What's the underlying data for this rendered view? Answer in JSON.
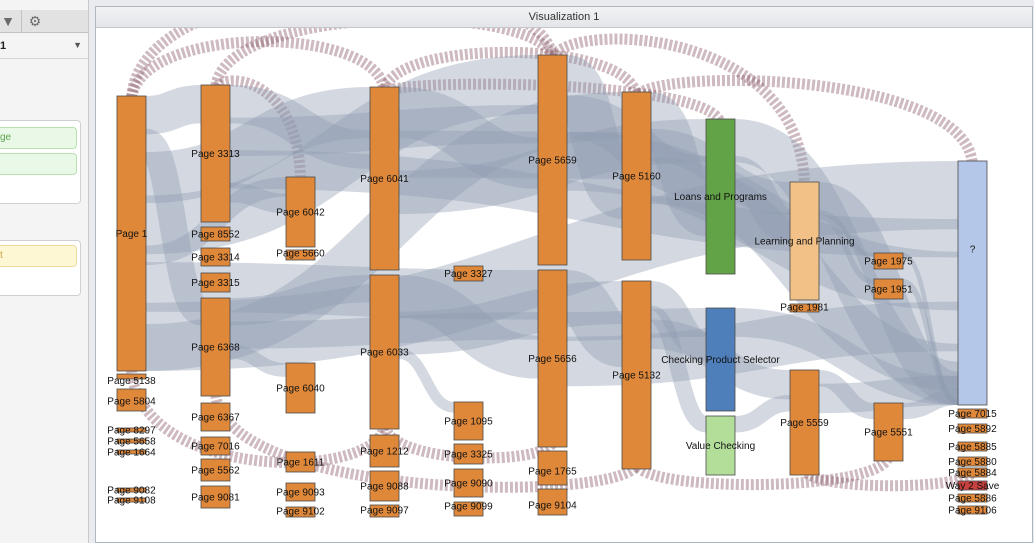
{
  "left_panel": {
    "selected_value": "1",
    "chip_1": "ge",
    "chip_2": "",
    "chip_3": "t"
  },
  "visualization": {
    "title": "Visualization 1"
  },
  "chart_data": {
    "type": "sankey",
    "nodes": [
      {
        "id": "page-1",
        "label": "Page 1",
        "color": "#e0883a"
      },
      {
        "id": "page-5138",
        "label": "Page 5138",
        "color": "#e0883a"
      },
      {
        "id": "page-5804",
        "label": "Page 5804",
        "color": "#e0883a"
      },
      {
        "id": "page-8297",
        "label": "Page 8297",
        "color": "#e0883a"
      },
      {
        "id": "page-5658",
        "label": "Page 5658",
        "color": "#e0883a"
      },
      {
        "id": "page-1664",
        "label": "Page 1664",
        "color": "#e0883a"
      },
      {
        "id": "page-9082",
        "label": "Page 9082",
        "color": "#e0883a"
      },
      {
        "id": "page-9108",
        "label": "Page 9108",
        "color": "#e0883a"
      },
      {
        "id": "page-3313",
        "label": "Page 3313",
        "color": "#e0883a"
      },
      {
        "id": "page-8552",
        "label": "Page 8552",
        "color": "#e0883a"
      },
      {
        "id": "page-3314",
        "label": "Page 3314",
        "color": "#e0883a"
      },
      {
        "id": "page-3315",
        "label": "Page 3315",
        "color": "#e0883a"
      },
      {
        "id": "page-6368",
        "label": "Page 6368",
        "color": "#e0883a"
      },
      {
        "id": "page-6367",
        "label": "Page 6367",
        "color": "#e0883a"
      },
      {
        "id": "page-7016",
        "label": "Page 7016",
        "color": "#e0883a"
      },
      {
        "id": "page-5562",
        "label": "Page 5562",
        "color": "#e0883a"
      },
      {
        "id": "page-9081",
        "label": "Page 9081",
        "color": "#e0883a"
      },
      {
        "id": "page-6042",
        "label": "Page 6042",
        "color": "#e0883a"
      },
      {
        "id": "page-5660",
        "label": "Page 5660",
        "color": "#e0883a"
      },
      {
        "id": "page-6040",
        "label": "Page 6040",
        "color": "#e0883a"
      },
      {
        "id": "page-1611",
        "label": "Page 1611",
        "color": "#e0883a"
      },
      {
        "id": "page-9093",
        "label": "Page 9093",
        "color": "#e0883a"
      },
      {
        "id": "page-9102",
        "label": "Page 9102",
        "color": "#e0883a"
      },
      {
        "id": "page-6041",
        "label": "Page 6041",
        "color": "#e0883a"
      },
      {
        "id": "page-6033",
        "label": "Page 6033",
        "color": "#e0883a"
      },
      {
        "id": "page-1212",
        "label": "Page 1212",
        "color": "#e0883a"
      },
      {
        "id": "page-9088",
        "label": "Page 9088",
        "color": "#e0883a"
      },
      {
        "id": "page-9097",
        "label": "Page 9097",
        "color": "#e0883a"
      },
      {
        "id": "page-3327",
        "label": "Page 3327",
        "color": "#e0883a"
      },
      {
        "id": "page-1095",
        "label": "Page 1095",
        "color": "#e0883a"
      },
      {
        "id": "page-3325",
        "label": "Page 3325",
        "color": "#e0883a"
      },
      {
        "id": "page-9090",
        "label": "Page 9090",
        "color": "#e0883a"
      },
      {
        "id": "page-9099",
        "label": "Page 9099",
        "color": "#e0883a"
      },
      {
        "id": "page-5659",
        "label": "Page 5659",
        "color": "#e0883a"
      },
      {
        "id": "page-5656",
        "label": "Page 5656",
        "color": "#e0883a"
      },
      {
        "id": "page-1765",
        "label": "Page 1765",
        "color": "#e0883a"
      },
      {
        "id": "page-9104",
        "label": "Page 9104",
        "color": "#e0883a"
      },
      {
        "id": "page-5160",
        "label": "Page 5160",
        "color": "#e0883a"
      },
      {
        "id": "page-5132",
        "label": "Page 5132",
        "color": "#e0883a"
      },
      {
        "id": "loans-and-programs",
        "label": "Loans and Programs",
        "color": "#62a347"
      },
      {
        "id": "checking-product-selector",
        "label": "Checking Product Selector",
        "color": "#4f7fba"
      },
      {
        "id": "value-checking",
        "label": "Value Checking",
        "color": "#b2de9a"
      },
      {
        "id": "learning-and-planning",
        "label": "Learning and Planning",
        "color": "#f2c188"
      },
      {
        "id": "page-1981",
        "label": "Page 1981",
        "color": "#e0883a"
      },
      {
        "id": "page-5559",
        "label": "Page 5559",
        "color": "#e0883a"
      },
      {
        "id": "page-1975",
        "label": "Page 1975",
        "color": "#e0883a"
      },
      {
        "id": "page-1951",
        "label": "Page 1951",
        "color": "#e0883a"
      },
      {
        "id": "page-5551",
        "label": "Page 5551",
        "color": "#e0883a"
      },
      {
        "id": "unknown",
        "label": "?",
        "color": "#b5c7e8"
      },
      {
        "id": "page-7015",
        "label": "Page 7015",
        "color": "#e0883a"
      },
      {
        "id": "page-5892",
        "label": "Page 5892",
        "color": "#e0883a"
      },
      {
        "id": "page-5885",
        "label": "Page 5885",
        "color": "#e0883a"
      },
      {
        "id": "page-5880",
        "label": "Page 5880",
        "color": "#e0883a"
      },
      {
        "id": "page-5884",
        "label": "Page 5884",
        "color": "#e0883a"
      },
      {
        "id": "way-2-save",
        "label": "Way 2 Save",
        "color": "#c9413f"
      },
      {
        "id": "page-5886",
        "label": "Page 5886",
        "color": "#e0883a"
      },
      {
        "id": "page-9106",
        "label": "Page 9106",
        "color": "#e0883a"
      }
    ],
    "links": [
      [
        "page-1",
        "page-3313"
      ],
      [
        "page-1",
        "page-6368"
      ],
      [
        "page-1",
        "page-6041"
      ],
      [
        "page-1",
        "page-5659"
      ],
      [
        "page-1",
        "page-6042"
      ],
      [
        "page-1",
        "page-5656"
      ],
      [
        "page-1",
        "unknown"
      ],
      [
        "page-1",
        "page-5160"
      ],
      [
        "page-3313",
        "page-6041"
      ],
      [
        "page-3313",
        "page-5659"
      ],
      [
        "page-3313",
        "unknown"
      ],
      [
        "page-3313",
        "page-6042"
      ],
      [
        "page-6368",
        "page-6033"
      ],
      [
        "page-6368",
        "page-5656"
      ],
      [
        "page-6368",
        "page-6040"
      ],
      [
        "page-6041",
        "page-5659"
      ],
      [
        "page-6041",
        "page-5160"
      ],
      [
        "page-6041",
        "loans-and-programs"
      ],
      [
        "page-6033",
        "page-5656"
      ],
      [
        "page-6033",
        "page-5132"
      ],
      [
        "page-6033",
        "page-1095"
      ],
      [
        "page-5659",
        "page-5160"
      ],
      [
        "page-5659",
        "loans-and-programs"
      ],
      [
        "page-5659",
        "unknown"
      ],
      [
        "page-5656",
        "page-5132"
      ],
      [
        "page-5656",
        "checking-product-selector"
      ],
      [
        "page-5656",
        "unknown"
      ],
      [
        "page-5160",
        "loans-and-programs"
      ],
      [
        "page-5160",
        "learning-and-planning"
      ],
      [
        "page-5160",
        "unknown"
      ],
      [
        "page-5132",
        "checking-product-selector"
      ],
      [
        "page-5132",
        "value-checking"
      ],
      [
        "page-5132",
        "page-5559"
      ],
      [
        "loans-and-programs",
        "unknown"
      ],
      [
        "loans-and-programs",
        "learning-and-planning"
      ],
      [
        "learning-and-planning",
        "unknown"
      ],
      [
        "learning-and-planning",
        "page-1975"
      ],
      [
        "learning-and-planning",
        "page-1951"
      ],
      [
        "checking-product-selector",
        "unknown"
      ],
      [
        "value-checking",
        "page-5559"
      ],
      [
        "page-5559",
        "page-5551"
      ],
      [
        "page-5559",
        "unknown"
      ],
      [
        "page-5551",
        "unknown"
      ],
      [
        "page-1975",
        "unknown"
      ],
      [
        "page-1951",
        "unknown"
      ]
    ]
  }
}
